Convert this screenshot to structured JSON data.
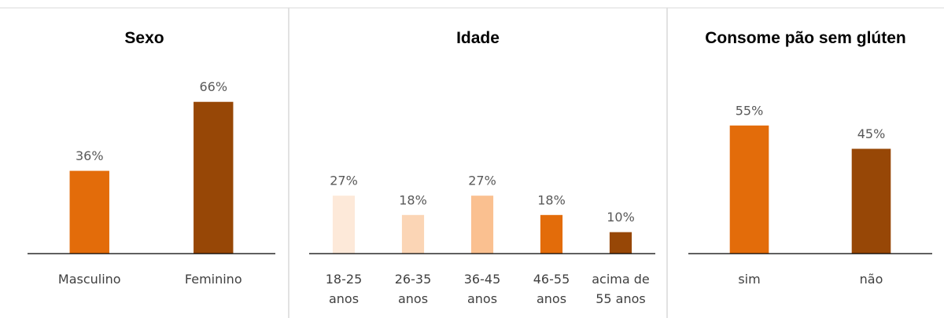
{
  "chart_data": [
    {
      "type": "bar",
      "title": "Sexo",
      "categories": [
        "Masculino",
        "Feminino"
      ],
      "values": [
        36,
        66
      ],
      "value_labels": [
        "36%",
        "66%"
      ],
      "colors": [
        "#e36c0a",
        "#974706"
      ],
      "ylim": [
        0,
        70
      ]
    },
    {
      "type": "bar",
      "title": "Idade",
      "categories": [
        "18-25 anos",
        "26-35 anos",
        "36-45 anos",
        "46-55 anos",
        "acima de 55 anos"
      ],
      "values": [
        27,
        18,
        27,
        18,
        10
      ],
      "value_labels": [
        "27%",
        "18%",
        "27%",
        "18%",
        "10%"
      ],
      "colors": [
        "#fde9d9",
        "#fbd5b5",
        "#fac090",
        "#e36c0a",
        "#974706"
      ],
      "ylim": [
        0,
        30
      ]
    },
    {
      "type": "bar",
      "title": "Consome pão sem glúten",
      "categories": [
        "sim",
        "não"
      ],
      "values": [
        55,
        45
      ],
      "value_labels": [
        "55%",
        "45%"
      ],
      "colors": [
        "#e36c0a",
        "#974706"
      ],
      "ylim": [
        0,
        60
      ]
    }
  ]
}
